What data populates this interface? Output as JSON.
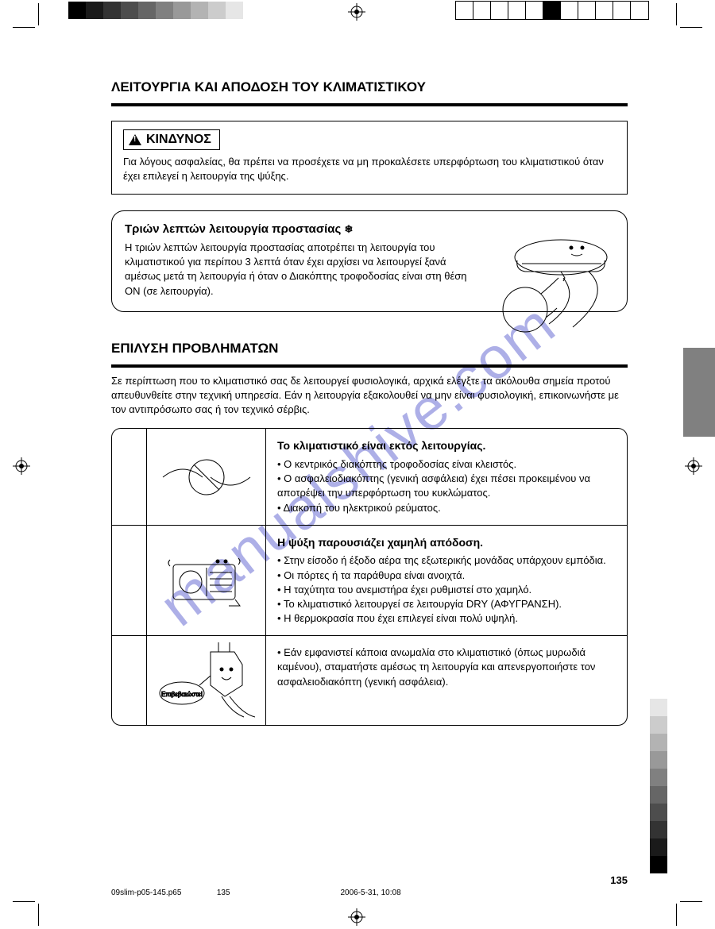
{
  "colors": {
    "text": "#000000",
    "bg": "#ffffff",
    "sidebar_tab": "#808080",
    "watermark": "#6b6fd4",
    "grayscale_bar": [
      "#000000",
      "#1a1a1a",
      "#333333",
      "#4d4d4d",
      "#666666",
      "#808080",
      "#999999",
      "#b3b3b3",
      "#cccccc",
      "#e6e6e6",
      "#ffffff"
    ],
    "bw_bar": [
      "#ffffff",
      "#ffffff",
      "#ffffff",
      "#ffffff",
      "#ffffff",
      "#000000",
      "#ffffff",
      "#ffffff",
      "#ffffff",
      "#ffffff",
      "#ffffff"
    ],
    "right_bar": [
      "#ffffff",
      "#e6e6e6",
      "#cccccc",
      "#b3b3b3",
      "#999999",
      "#808080",
      "#666666",
      "#4d4d4d",
      "#333333",
      "#1a1a1a",
      "#000000"
    ]
  },
  "watermark_text": "manualshive.com",
  "section1": {
    "title": "ΛΕΙΤΟΥΡΓΙΑ ΚΑΙ ΑΠΟΔΟΣΗ ΤΟΥ ΚΛΙΜΑΤΙΣΤΙΚΟΥ",
    "danger_label": "ΚΙΝΔΥΝΟΣ",
    "danger_text": "Για λόγους ασφαλείας, θα πρέπει να προσέχετε να μη προκαλέσετε υπερφόρτωση του κλιματιστικού όταν έχει επιλεγεί η λειτουργία της ψύξης.",
    "info_heading": "Τριών λεπτών λειτουργία προστασίας",
    "info_snow": "❄",
    "info_text": "Η τριών λεπτών λειτουργία προστασίας αποτρέπει τη λειτουργία του κλιματιστικού για περίπου 3 λεπτά όταν έχει αρχίσει να λειτουργεί ξανά αμέσως μετά τη λειτουργία ή όταν ο Διακόπτης τροφοδοσίας είναι στη θέση ΟΝ (σε λειτουργία)."
  },
  "section2": {
    "title": "ΕΠΙΛΥΣΗ ΠΡΟΒΛΗΜΑΤΩΝ",
    "intro": "Σε περίπτωση που το κλιματιστικό σας δε λειτουργεί φυσιολογικά, αρχικά ελέγξτε τα ακόλουθα σημεία προτού απευθυνθείτε στην τεχνική υπηρεσία. Εάν η λειτουργία εξακολουθεί να μην είναι φυσιολογική, επικοινωνήστε με τον αντιπρόσωπο σας ή τον τεχνικό σέρβις.",
    "rows": [
      {
        "heading": "Το κλιματιστικό είναι εκτός λειτουργίας.",
        "body": "• Ο κεντρικός διακόπτης τροφοδοσίας είναι κλειστός.\n• Ο ασφαλειοδιακόπτης (γενική ασφάλεια) έχει πέσει προκειμένου να αποτρέψει την υπερφόρτωση του κυκλώματος.\n• Διακοπή του ηλεκτρικού ρεύματος."
      },
      {
        "heading": "Η ψύξη παρουσιάζει χαμηλή απόδοση.",
        "body": "• Στην είσοδο ή έξοδο αέρα της εξωτερικής μονάδας υπάρχουν εμπόδια.\n• Οι πόρτες ή τα παράθυρα είναι ανοιχτά.\n• Η ταχύτητα του ανεμιστήρα έχει ρυθμιστεί στο χαμηλό.\n• Το κλιματιστικό λειτουργεί σε λειτουργία DRY (ΑΦΥΓΡΑΝΣΗ).\n• Η θερμοκρασία που έχει επιλεγεί είναι πολύ υψηλή."
      },
      {
        "heading": "",
        "body": "• Εάν εμφανιστεί κάποια ανωμαλία στο κλιματιστικό (όπως μυρωδιά καμένου), σταματήστε αμέσως τη λειτουργία και απενεργοποιήστε τον ασφαλειοδιακόπτη (γενική ασφάλεια)."
      }
    ],
    "bubble_text": "Επιβεβαιώστε!"
  },
  "footer": {
    "page": "135",
    "file": "09slim-p05-145.p65",
    "file_page": "135",
    "date": "2006-5-31, 10:08"
  }
}
